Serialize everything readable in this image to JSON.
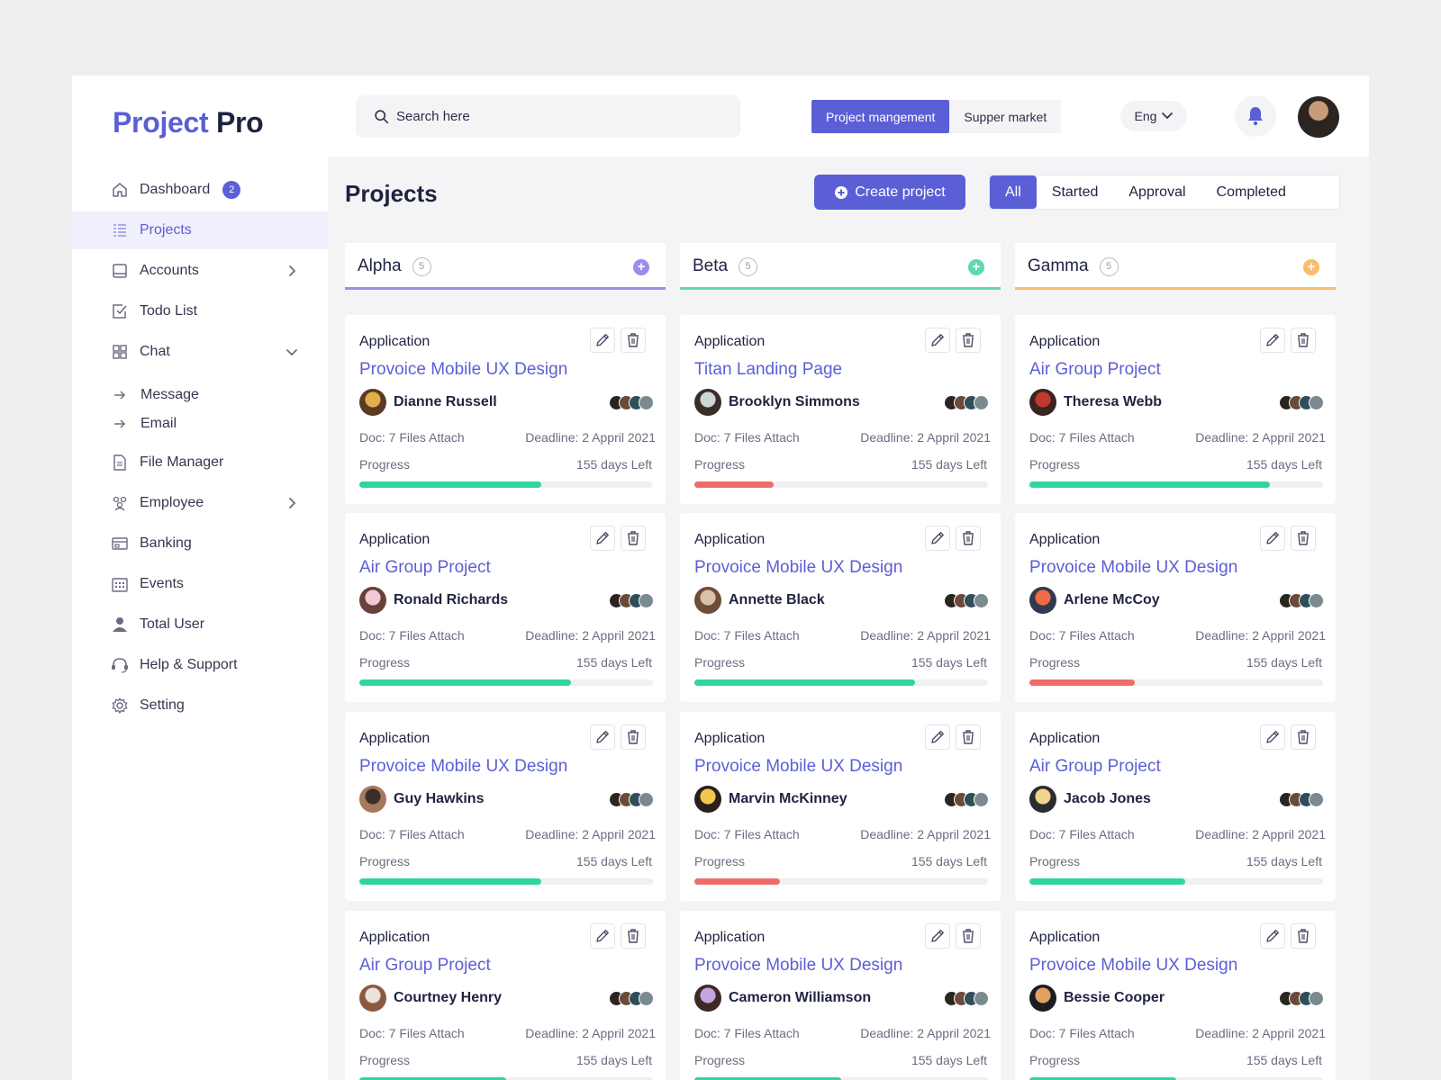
{
  "logo": {
    "part1": "Project",
    "part2": "Pro"
  },
  "search": {
    "placeholder": "Search here"
  },
  "workspace_tabs": [
    {
      "label": "Project mangement",
      "active": true
    },
    {
      "label": "Supper market",
      "active": false
    }
  ],
  "language": "Eng",
  "sidebar": {
    "dashboard": {
      "label": "Dashboard",
      "badge": "2"
    },
    "projects": "Projects",
    "accounts": "Accounts",
    "todo": "Todo List",
    "chat": "Chat",
    "message": "Message",
    "email": "Email",
    "file_manager": "File Manager",
    "employee": "Employee",
    "banking": "Banking",
    "events": "Events",
    "total_user": "Total User",
    "help": "Help & Support",
    "setting": "Setting"
  },
  "main": {
    "title": "Projects",
    "create_label": "Create project",
    "filters": [
      {
        "label": "All",
        "active": true
      },
      {
        "label": "Started",
        "active": false
      },
      {
        "label": "Approval",
        "active": false
      },
      {
        "label": "Completed",
        "active": false
      }
    ]
  },
  "colors": {
    "accent": "#5b5fd6",
    "green": "#2fd5a0",
    "red": "#f26b6b",
    "alpha": "#9b8cf0",
    "beta": "#5fd9b0",
    "gamma": "#fbbd6a"
  },
  "columns": [
    {
      "name": "Alpha",
      "count": "5",
      "color": "#9b8cf0",
      "cards": [
        {
          "tag": "Application",
          "title": "Provoice Mobile UX Design",
          "person": "Dianne Russell",
          "doc": "Doc: 7 Files Attach",
          "deadline": "Deadline: 2 Appril 2021",
          "progress_label": "Progress",
          "days_left": "155 days Left",
          "progress": 0.62,
          "bar": "green",
          "avatar": [
            "#e0b04a",
            "#5a3a22"
          ]
        },
        {
          "tag": "Application",
          "title": "Air Group Project",
          "person": "Ronald Richards",
          "doc": "Doc: 7 Files Attach",
          "deadline": "Deadline: 2 Appril 2021",
          "progress_label": "Progress",
          "days_left": "155 days Left",
          "progress": 0.72,
          "bar": "green",
          "avatar": [
            "#f3c9d6",
            "#6b3f3a"
          ]
        },
        {
          "tag": "Application",
          "title": "Provoice Mobile UX Design",
          "person": "Guy Hawkins",
          "doc": "Doc: 7 Files Attach",
          "deadline": "Deadline: 2 Appril 2021",
          "progress_label": "Progress",
          "days_left": "155 days Left",
          "progress": 0.62,
          "bar": "green",
          "avatar": [
            "#3b2f2a",
            "#a57a5c"
          ]
        },
        {
          "tag": "Application",
          "title": "Air Group Project",
          "person": "Courtney Henry",
          "doc": "Doc: 7 Files Attach",
          "deadline": "Deadline: 2 Appril 2021",
          "progress_label": "Progress",
          "days_left": "155 days Left",
          "progress": 0.5,
          "bar": "green",
          "avatar": [
            "#e9e2d8",
            "#8a5a40"
          ]
        }
      ]
    },
    {
      "name": "Beta",
      "count": "5",
      "color": "#5fd9b0",
      "cards": [
        {
          "tag": "Application",
          "title": "Titan Landing Page",
          "person": "Brooklyn Simmons",
          "doc": "Doc: 7 Files Attach",
          "deadline": "Deadline: 2 Appril 2021",
          "progress_label": "Progress",
          "days_left": "155 days Left",
          "progress": 0.27,
          "bar": "red",
          "avatar": [
            "#cfd7d6",
            "#3a2c28"
          ]
        },
        {
          "tag": "Application",
          "title": "Provoice Mobile UX Design",
          "person": "Annette Black",
          "doc": "Doc: 7 Files Attach",
          "deadline": "Deadline: 2 Appril 2021",
          "progress_label": "Progress",
          "days_left": "155 days Left",
          "progress": 0.75,
          "bar": "green",
          "avatar": [
            "#d9c3a8",
            "#6d4c38"
          ]
        },
        {
          "tag": "Application",
          "title": "Provoice Mobile UX Design",
          "person": "Marvin McKinney",
          "doc": "Doc: 7 Files Attach",
          "deadline": "Deadline: 2 Appril 2021",
          "progress_label": "Progress",
          "days_left": "155 days Left",
          "progress": 0.29,
          "bar": "red",
          "avatar": [
            "#f2c94c",
            "#2b1f1c"
          ]
        },
        {
          "tag": "Application",
          "title": "Provoice Mobile UX Design",
          "person": "Cameron Williamson",
          "doc": "Doc: 7 Files Attach",
          "deadline": "Deadline: 2 Appril 2021",
          "progress_label": "Progress",
          "days_left": "155 days Left",
          "progress": 0.5,
          "bar": "green",
          "avatar": [
            "#c6a4e0",
            "#3c2a24"
          ]
        }
      ]
    },
    {
      "name": "Gamma",
      "count": "5",
      "color": "#fbbd6a",
      "cards": [
        {
          "tag": "Application",
          "title": "Air Group Project",
          "person": "Theresa Webb",
          "doc": "Doc: 7 Files Attach",
          "deadline": "Deadline: 2 Appril 2021",
          "progress_label": "Progress",
          "days_left": "155 days Left",
          "progress": 0.82,
          "bar": "green",
          "avatar": [
            "#c0392b",
            "#3a2420"
          ]
        },
        {
          "tag": "Application",
          "title": "Provoice Mobile UX Design",
          "person": "Arlene McCoy",
          "doc": "Doc: 7 Files Attach",
          "deadline": "Deadline: 2 Appril 2021",
          "progress_label": "Progress",
          "days_left": "155 days Left",
          "progress": 0.36,
          "bar": "red",
          "avatar": [
            "#f06a45",
            "#2e3b4e"
          ]
        },
        {
          "tag": "Application",
          "title": "Air Group Project",
          "person": "Jacob Jones",
          "doc": "Doc: 7 Files Attach",
          "deadline": "Deadline: 2 Appril 2021",
          "progress_label": "Progress",
          "days_left": "155 days Left",
          "progress": 0.53,
          "bar": "green",
          "avatar": [
            "#f1d48a",
            "#2b2c30"
          ]
        },
        {
          "tag": "Application",
          "title": "Provoice Mobile UX Design",
          "person": "Bessie Cooper",
          "doc": "Doc: 7 Files Attach",
          "deadline": "Deadline: 2 Appril 2021",
          "progress_label": "Progress",
          "days_left": "155 days Left",
          "progress": 0.5,
          "bar": "green",
          "avatar": [
            "#e2a25c",
            "#1d1c22"
          ]
        }
      ]
    }
  ]
}
